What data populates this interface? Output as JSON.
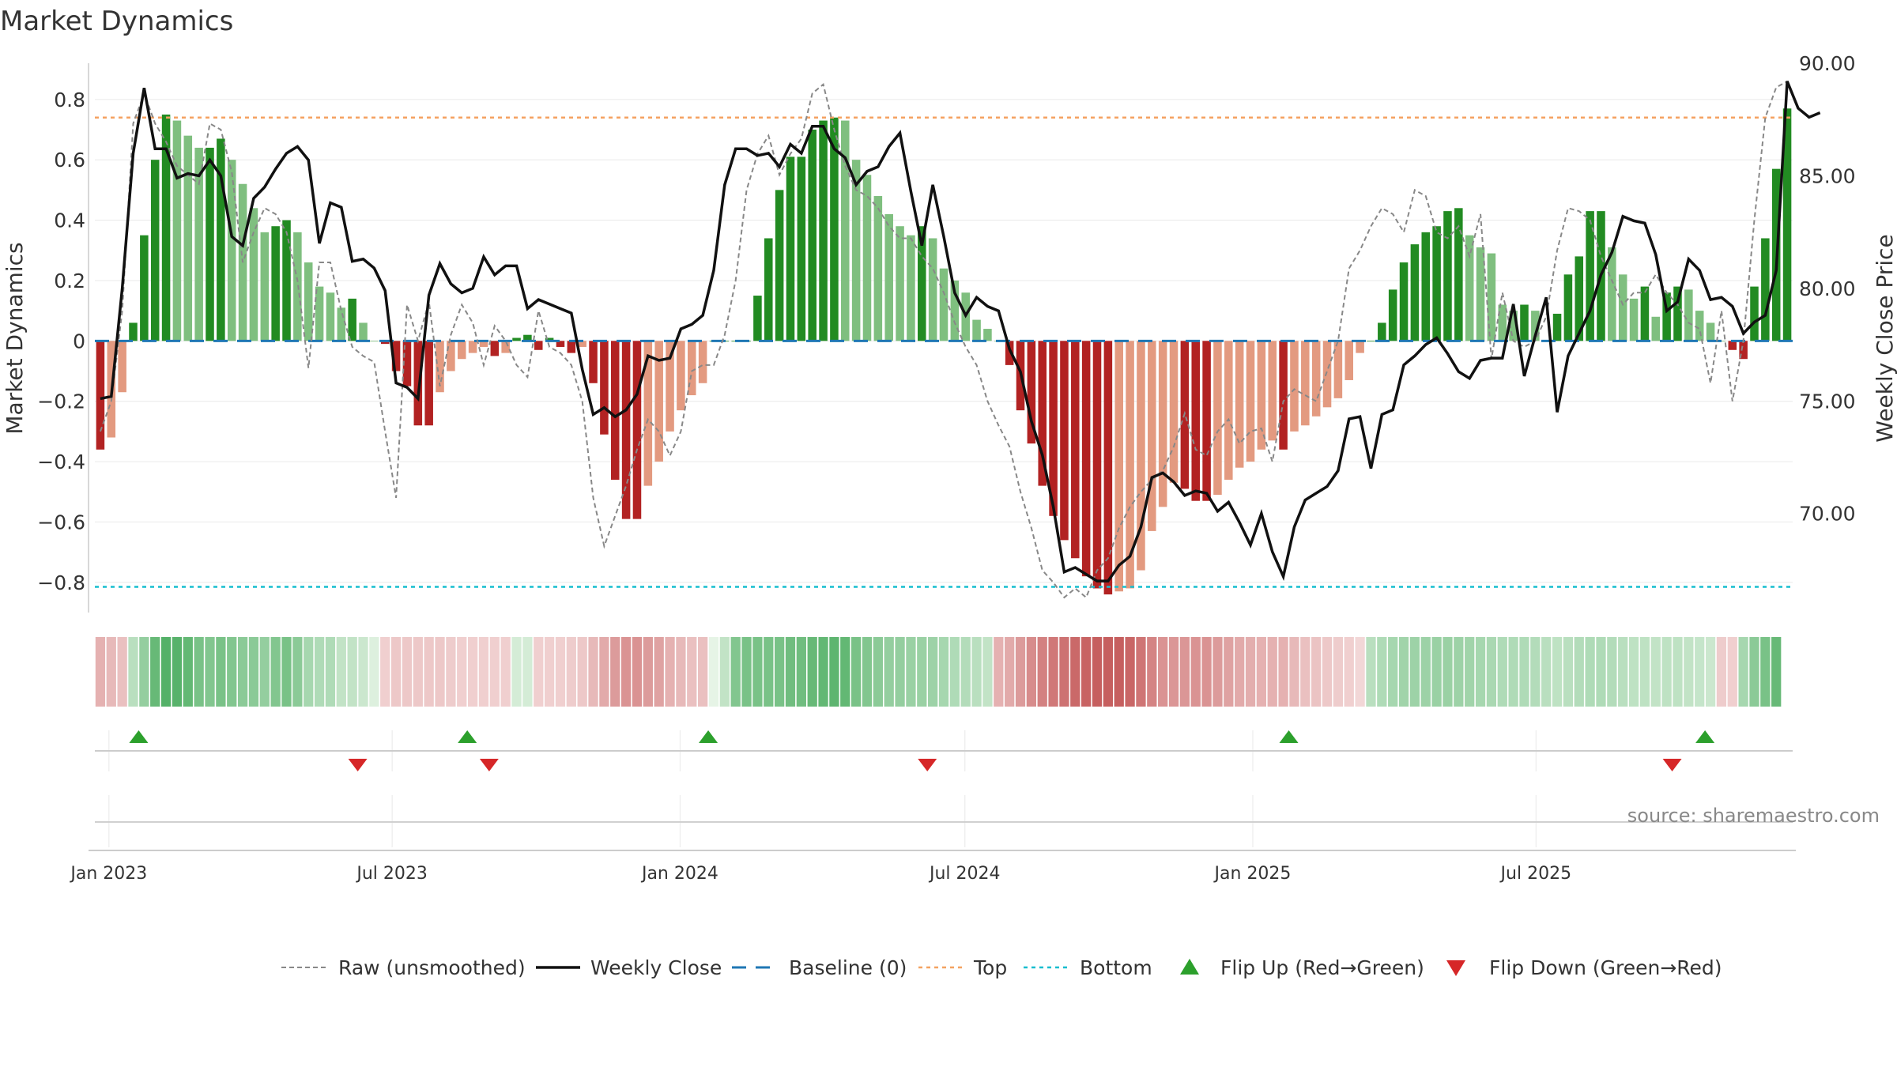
{
  "title": "Market Dynamics",
  "source": "source: sharemaestro.com",
  "chart_data": {
    "type": "bar",
    "y_left_label": "Market Dynamics",
    "y_right_label": "Weekly Close Price",
    "y_left_ticks": [
      "0.8",
      "0.6",
      "0.4",
      "0.2",
      "0",
      "−0.2",
      "−0.4",
      "−0.6",
      "−0.8"
    ],
    "y_left_tick_values": [
      0.8,
      0.6,
      0.4,
      0.2,
      0,
      -0.2,
      -0.4,
      -0.6,
      -0.8
    ],
    "y_right_ticks": [
      "90.00",
      "85.00",
      "80.00",
      "75.00",
      "70.00"
    ],
    "y_right_tick_values": [
      90,
      85,
      80,
      75,
      70
    ],
    "ylim_left": [
      -0.9,
      0.92
    ],
    "ylim_right": [
      65.6,
      90.0
    ],
    "x_start": "2022-12-23",
    "x_ticks": [
      "Jan 2023",
      "Jul 2023",
      "Jan 2024",
      "Jul 2024",
      "Jan 2025",
      "Jul 2025"
    ],
    "x_tick_dates": [
      "2023-01-01",
      "2023-07-01",
      "2024-01-01",
      "2024-07-01",
      "2025-01-01",
      "2025-07-01"
    ],
    "top_level": 0.74,
    "bottom_level": -0.815,
    "dynamics": [
      -0.36,
      -0.32,
      -0.17,
      0.06,
      0.35,
      0.6,
      0.75,
      0.73,
      0.68,
      0.64,
      0.64,
      0.67,
      0.6,
      0.52,
      0.44,
      0.36,
      0.38,
      0.4,
      0.36,
      0.26,
      0.18,
      0.16,
      0.11,
      0.14,
      0.06,
      0,
      -0.01,
      -0.1,
      -0.15,
      -0.28,
      -0.28,
      -0.17,
      -0.1,
      -0.06,
      -0.04,
      -0.02,
      -0.05,
      -0.04,
      0.01,
      0.02,
      -0.03,
      0.01,
      -0.02,
      -0.04,
      -0.02,
      -0.14,
      -0.31,
      -0.46,
      -0.59,
      -0.59,
      -0.48,
      -0.4,
      -0.3,
      -0.23,
      -0.18,
      -0.14,
      0,
      0,
      0,
      0,
      0.15,
      0.34,
      0.5,
      0.61,
      0.61,
      0.7,
      0.73,
      0.74,
      0.73,
      0.6,
      0.55,
      0.48,
      0.42,
      0.38,
      0.35,
      0.38,
      0.34,
      0.24,
      0.2,
      0.16,
      0.07,
      0.04,
      0,
      -0.08,
      -0.23,
      -0.34,
      -0.48,
      -0.58,
      -0.66,
      -0.72,
      -0.78,
      -0.82,
      -0.84,
      -0.83,
      -0.82,
      -0.76,
      -0.63,
      -0.55,
      -0.47,
      -0.49,
      -0.53,
      -0.53,
      -0.51,
      -0.46,
      -0.42,
      -0.4,
      -0.36,
      -0.33,
      -0.36,
      -0.3,
      -0.28,
      -0.25,
      -0.22,
      -0.19,
      -0.13,
      -0.04,
      0,
      0.06,
      0.17,
      0.26,
      0.32,
      0.36,
      0.38,
      0.43,
      0.44,
      0.35,
      0.31,
      0.29,
      0.12,
      0.1,
      0.12,
      0.1,
      0,
      0.09,
      0.22,
      0.28,
      0.43,
      0.43,
      0.31,
      0.22,
      0.14,
      0.18,
      0.08,
      0.16,
      0.18,
      0.17,
      0.1,
      0.06,
      0,
      -0.03,
      -0.06,
      0.18,
      0.34,
      0.57,
      0.77
    ],
    "raw": [
      -0.3,
      -0.2,
      0.1,
      0.72,
      0.82,
      0.72,
      0.66,
      0.58,
      0.55,
      0.52,
      0.72,
      0.7,
      0.56,
      0.26,
      0.36,
      0.44,
      0.42,
      0.36,
      0.2,
      -0.09,
      0.26,
      0.26,
      0.1,
      -0.02,
      -0.05,
      -0.07,
      -0.3,
      -0.52,
      0.12,
      0.0,
      0.13,
      -0.15,
      0.02,
      0.12,
      0.06,
      -0.08,
      0.05,
      0.0,
      -0.08,
      -0.12,
      0.1,
      -0.02,
      -0.04,
      -0.08,
      -0.2,
      -0.52,
      -0.68,
      -0.58,
      -0.48,
      -0.36,
      -0.26,
      -0.3,
      -0.38,
      -0.3,
      -0.1,
      -0.08,
      -0.08,
      0.02,
      0.2,
      0.5,
      0.62,
      0.68,
      0.55,
      0.62,
      0.67,
      0.82,
      0.85,
      0.7,
      0.58,
      0.5,
      0.48,
      0.44,
      0.38,
      0.34,
      0.34,
      0.28,
      0.24,
      0.16,
      0.06,
      -0.02,
      -0.08,
      -0.2,
      -0.28,
      -0.35,
      -0.5,
      -0.62,
      -0.76,
      -0.8,
      -0.85,
      -0.82,
      -0.85,
      -0.76,
      -0.72,
      -0.62,
      -0.55,
      -0.5,
      -0.46,
      -0.43,
      -0.35,
      -0.24,
      -0.36,
      -0.38,
      -0.3,
      -0.26,
      -0.34,
      -0.3,
      -0.29,
      -0.4,
      -0.2,
      -0.16,
      -0.18,
      -0.2,
      -0.1,
      0.0,
      0.24,
      0.3,
      0.38,
      0.44,
      0.42,
      0.36,
      0.5,
      0.48,
      0.36,
      0.34,
      0.38,
      0.28,
      0.42,
      -0.06,
      0.16,
      0.0,
      -0.02,
      0.0,
      0.08,
      0.3,
      0.44,
      0.43,
      0.4,
      0.28,
      0.2,
      0.12,
      0.16,
      0.16,
      0.22,
      0.16,
      0.12,
      0.06,
      0.04,
      -0.14,
      0.1,
      -0.2,
      0.0,
      0.4,
      0.74,
      0.84,
      0.86
    ],
    "price": [
      75.1,
      75.2,
      80.0,
      86.0,
      88.9,
      86.2,
      86.2,
      84.9,
      85.1,
      85.0,
      85.7,
      85.0,
      82.3,
      81.9,
      84.0,
      84.5,
      85.3,
      86.0,
      86.3,
      85.7,
      82.0,
      83.8,
      83.6,
      81.2,
      81.3,
      80.9,
      79.9,
      75.8,
      75.6,
      75.1,
      79.7,
      81.1,
      80.2,
      79.8,
      80.0,
      81.4,
      80.6,
      81.0,
      81.0,
      79.1,
      79.5,
      79.3,
      79.1,
      78.9,
      76.4,
      74.4,
      74.7,
      74.3,
      74.6,
      75.3,
      77.0,
      76.8,
      76.9,
      78.2,
      78.4,
      78.8,
      80.8,
      84.6,
      86.2,
      86.2,
      85.9,
      86.0,
      85.4,
      86.4,
      86.0,
      87.2,
      87.2,
      86.2,
      85.8,
      84.6,
      85.2,
      85.4,
      86.3,
      86.9,
      84.3,
      81.9,
      84.6,
      82.3,
      79.8,
      78.8,
      79.6,
      79.2,
      79.0,
      77.3,
      76.3,
      74.1,
      72.6,
      70.3,
      67.4,
      67.6,
      67.3,
      67.0,
      67.0,
      67.7,
      68.1,
      69.4,
      71.6,
      71.8,
      71.4,
      70.8,
      71.0,
      70.9,
      70.1,
      70.5,
      69.6,
      68.6,
      70.0,
      68.3,
      67.2,
      69.4,
      70.6,
      70.9,
      71.2,
      71.9,
      74.2,
      74.3,
      72.0,
      74.4,
      74.6,
      76.6,
      77.0,
      77.5,
      77.8,
      77.1,
      76.3,
      76.0,
      76.8,
      76.9,
      76.9,
      79.3,
      76.1,
      77.9,
      79.6,
      74.5,
      77.0,
      78.0,
      79.0,
      80.6,
      81.6,
      83.2,
      83.0,
      82.9,
      81.5,
      79.0,
      79.4,
      81.3,
      80.8,
      79.5,
      79.6,
      79.2,
      78.0,
      78.5,
      78.8,
      80.8,
      89.2,
      88.0,
      87.6,
      87.8
    ],
    "heat_strip": [
      -0.3,
      -0.25,
      -0.2,
      0.25,
      0.45,
      0.7,
      0.8,
      0.78,
      0.72,
      0.6,
      0.55,
      0.6,
      0.55,
      0.5,
      0.5,
      0.45,
      0.55,
      0.6,
      0.5,
      0.35,
      0.3,
      0.3,
      0.2,
      0.2,
      0.15,
      0.05,
      -0.1,
      -0.15,
      -0.15,
      -0.15,
      -0.15,
      -0.15,
      -0.12,
      -0.1,
      -0.1,
      -0.1,
      -0.1,
      -0.1,
      0.1,
      0.1,
      -0.1,
      -0.1,
      -0.1,
      -0.12,
      -0.15,
      -0.25,
      -0.35,
      -0.45,
      -0.5,
      -0.5,
      -0.45,
      -0.4,
      -0.3,
      -0.25,
      -0.2,
      -0.2,
      0,
      0.2,
      0.55,
      0.6,
      0.6,
      0.6,
      0.6,
      0.65,
      0.65,
      0.7,
      0.72,
      0.75,
      0.72,
      0.6,
      0.55,
      0.5,
      0.45,
      0.45,
      0.42,
      0.42,
      0.4,
      0.35,
      0.3,
      0.28,
      0.25,
      0.2,
      -0.3,
      -0.35,
      -0.45,
      -0.55,
      -0.62,
      -0.68,
      -0.72,
      -0.78,
      -0.82,
      -0.85,
      -0.85,
      -0.85,
      -0.8,
      -0.7,
      -0.6,
      -0.5,
      -0.48,
      -0.48,
      -0.5,
      -0.5,
      -0.45,
      -0.4,
      -0.35,
      -0.32,
      -0.3,
      -0.3,
      -0.3,
      -0.25,
      -0.2,
      -0.18,
      -0.15,
      -0.12,
      -0.1,
      -0.05,
      0.25,
      0.3,
      0.35,
      0.38,
      0.4,
      0.4,
      0.42,
      0.42,
      0.4,
      0.38,
      0.35,
      0.33,
      0.3,
      0.3,
      0.3,
      0.28,
      0.25,
      0.22,
      0.25,
      0.28,
      0.3,
      0.3,
      0.28,
      0.25,
      0.22,
      0.22,
      0.2,
      0.22,
      0.22,
      0.2,
      0.18,
      0.15,
      -0.12,
      -0.1,
      0.35,
      0.5,
      0.6,
      0.7
    ],
    "flip_up_dates": [
      "2023-01-20",
      "2023-08-18",
      "2024-01-19",
      "2025-01-24",
      "2025-10-17"
    ],
    "flip_down_dates": [
      "2023-06-09",
      "2023-09-01",
      "2024-06-07",
      "2025-09-26"
    ],
    "legend_position": "bottom",
    "legend": {
      "raw": "Raw (unsmoothed)",
      "close": "Weekly Close",
      "baseline": "Baseline (0)",
      "top": "Top",
      "bottom": "Bottom",
      "flip_up": "Flip Up (Red→Green)",
      "flip_down": "Flip Down (Green→Red)"
    },
    "colors": {
      "pos_strong": "#228b22",
      "pos_light": "#7fbf7f",
      "neg_strong": "#b22222",
      "neg_light": "#e39a80",
      "raw_line": "#888888",
      "close_line": "#111111",
      "baseline": "#1f77b4",
      "top": "#f4a261",
      "bottom": "#17becf",
      "flip_up": "#2ca02c",
      "flip_down": "#d62728"
    }
  }
}
